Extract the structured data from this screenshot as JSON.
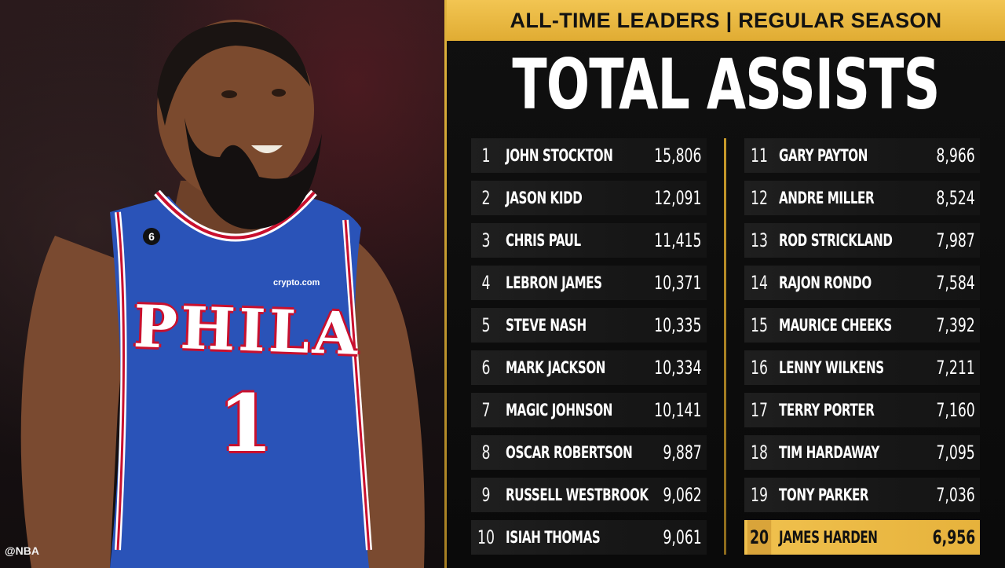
{
  "banner": "ALL-TIME LEADERS | REGULAR SEASON",
  "title": "TOTAL ASSISTS",
  "watermark": "@NBA",
  "jersey": {
    "team_text": "PHILA",
    "number": "1",
    "patch": "6",
    "sponsor": "crypto.com"
  },
  "colors": {
    "gold": "#e8b43c",
    "jersey_blue": "#2a53b8",
    "jersey_red": "#c8102e"
  },
  "leaders_left": [
    {
      "rank": "1",
      "name": "JOHN STOCKTON",
      "value": "15,806"
    },
    {
      "rank": "2",
      "name": "JASON KIDD",
      "value": "12,091"
    },
    {
      "rank": "3",
      "name": "CHRIS PAUL",
      "value": "11,415"
    },
    {
      "rank": "4",
      "name": "LEBRON JAMES",
      "value": "10,371"
    },
    {
      "rank": "5",
      "name": "STEVE NASH",
      "value": "10,335"
    },
    {
      "rank": "6",
      "name": "MARK JACKSON",
      "value": "10,334"
    },
    {
      "rank": "7",
      "name": "MAGIC JOHNSON",
      "value": "10,141"
    },
    {
      "rank": "8",
      "name": "OSCAR ROBERTSON",
      "value": "9,887"
    },
    {
      "rank": "9",
      "name": "RUSSELL WESTBROOK",
      "value": "9,062"
    },
    {
      "rank": "10",
      "name": "ISIAH THOMAS",
      "value": "9,061"
    }
  ],
  "leaders_right": [
    {
      "rank": "11",
      "name": "GARY PAYTON",
      "value": "8,966"
    },
    {
      "rank": "12",
      "name": "ANDRE MILLER",
      "value": "8,524"
    },
    {
      "rank": "13",
      "name": "ROD STRICKLAND",
      "value": "7,987"
    },
    {
      "rank": "14",
      "name": "RAJON RONDO",
      "value": "7,584"
    },
    {
      "rank": "15",
      "name": "MAURICE CHEEKS",
      "value": "7,392"
    },
    {
      "rank": "16",
      "name": "LENNY WILKENS",
      "value": "7,211"
    },
    {
      "rank": "17",
      "name": "TERRY PORTER",
      "value": "7,160"
    },
    {
      "rank": "18",
      "name": "TIM HARDAWAY",
      "value": "7,095"
    },
    {
      "rank": "19",
      "name": "TONY PARKER",
      "value": "7,036"
    },
    {
      "rank": "20",
      "name": "JAMES HARDEN",
      "value": "6,956"
    }
  ]
}
